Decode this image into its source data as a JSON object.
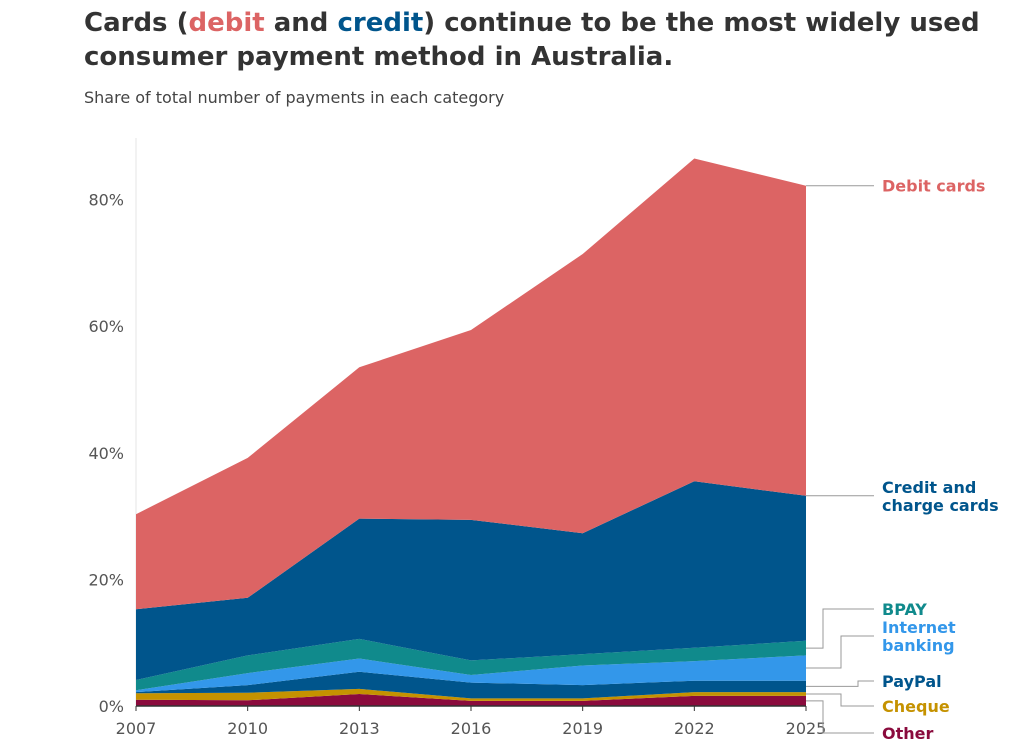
{
  "title": {
    "part1": "Cards (",
    "debit": "debit",
    "part2": " and ",
    "credit": "credit",
    "part3": ") continue to be the most widely used consumer payment method in Australia."
  },
  "subtitle": "Share of total number of payments in each category",
  "colors": {
    "debit": "#dc6464",
    "credit": "#00558c",
    "bpay": "#108a8c",
    "internet": "#3397ea",
    "paypal": "#00558c",
    "cheque": "#c59200",
    "other": "#8a0b3d"
  },
  "chart_data": {
    "type": "area",
    "stacked": true,
    "x": [
      2007,
      2010,
      2013,
      2016,
      2019,
      2022,
      2025
    ],
    "x_ticks": [
      "2007",
      "2010",
      "2013",
      "2016",
      "2019",
      "2022",
      "2025"
    ],
    "y_ticks": [
      "0%",
      "20%",
      "40%",
      "60%",
      "80%"
    ],
    "ylim": [
      0,
      90
    ],
    "y_unit": "%",
    "grid": false,
    "legend": "direct labels at right end",
    "series": [
      {
        "name": "Other",
        "key": "other",
        "label_lines": [
          "Other"
        ],
        "values": [
          1.0,
          0.9,
          1.9,
          0.8,
          0.8,
          1.6,
          1.6
        ]
      },
      {
        "name": "Cheque",
        "key": "cheque",
        "label_lines": [
          "Cheque"
        ],
        "values": [
          1.0,
          1.2,
          0.8,
          0.4,
          0.4,
          0.6,
          0.6
        ]
      },
      {
        "name": "PayPal",
        "key": "paypal",
        "label_lines": [
          "PayPal"
        ],
        "values": [
          0.2,
          1.2,
          2.7,
          2.5,
          2.1,
          1.8,
          1.8
        ]
      },
      {
        "name": "Internet banking",
        "key": "internet",
        "label_lines": [
          "Internet",
          "banking"
        ],
        "values": [
          0.3,
          1.9,
          2.1,
          1.2,
          3.1,
          3.1,
          4.0
        ]
      },
      {
        "name": "BPAY",
        "key": "bpay",
        "label_lines": [
          "BPAY"
        ],
        "values": [
          1.6,
          2.8,
          3.1,
          2.3,
          1.8,
          2.1,
          2.3
        ]
      },
      {
        "name": "Credit and charge cards",
        "key": "credit",
        "label_lines": [
          "Credit and",
          "charge cards"
        ],
        "values": [
          11.2,
          9.1,
          19.0,
          22.2,
          19.1,
          26.3,
          22.9
        ]
      },
      {
        "name": "Debit cards",
        "key": "debit",
        "label_lines": [
          "Debit cards"
        ],
        "values": [
          15.0,
          22.1,
          23.9,
          30.0,
          44.1,
          51.0,
          49.0
        ]
      }
    ]
  }
}
